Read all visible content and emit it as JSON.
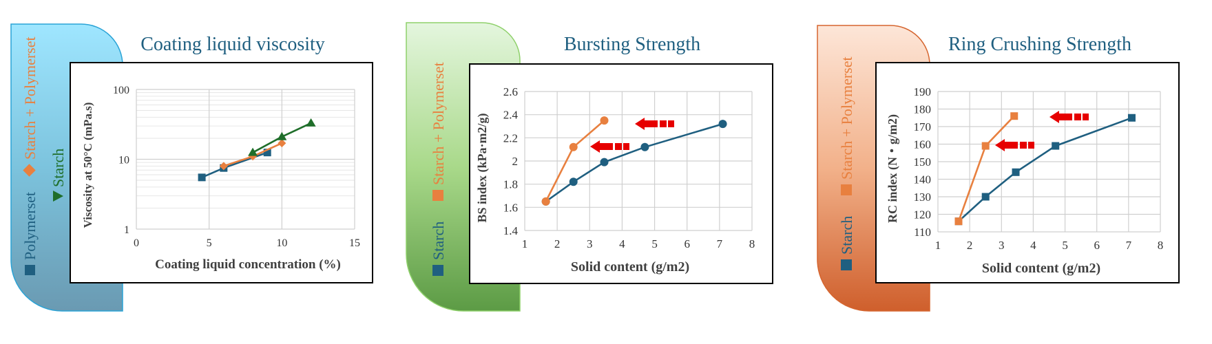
{
  "colors": {
    "polymerset": "#1f5f80",
    "starch_polymerset": "#e8803f",
    "starch_green": "#1f6e2a",
    "title": "#1f5f80",
    "arrow": "#e60000"
  },
  "panel1": {
    "title": "Coating liquid viscosity",
    "legend": {
      "polymerset": "Polymerset",
      "starch_polymerset": "Starch + Polymerset",
      "starch": "Starch"
    }
  },
  "panel2": {
    "title": "Bursting Strength",
    "legend": {
      "starch": "Starch",
      "starch_polymerset": "Starch + Polymerset"
    }
  },
  "panel3": {
    "title": "Ring Crushing Strength",
    "legend": {
      "starch": "Starch",
      "starch_polymerset": "Starch + Polymerset"
    }
  },
  "chart_data": [
    {
      "type": "line",
      "title": "Coating liquid viscosity",
      "xlabel": "Coating liquid concentration (%)",
      "ylabel": "Viscosity at 50°C (mPa.s)",
      "xlim": [
        0,
        15
      ],
      "ylim": [
        1,
        100
      ],
      "yscale": "log",
      "xticks": [
        "0",
        "5",
        "10",
        "15"
      ],
      "yticks": [
        "1",
        "10",
        "100"
      ],
      "grid": true,
      "series": [
        {
          "name": "Polymerset",
          "marker": "square",
          "x": [
            4.5,
            6.0,
            9.0
          ],
          "y": [
            5.5,
            7.5,
            12.5
          ]
        },
        {
          "name": "Starch + Polymerset",
          "marker": "diamond",
          "x": [
            6.0,
            8.0,
            10.0
          ],
          "y": [
            8.0,
            11.0,
            17.0
          ]
        },
        {
          "name": "Starch",
          "marker": "triangle",
          "x": [
            8.0,
            10.0,
            12.0
          ],
          "y": [
            12.5,
            21.0,
            33.0
          ]
        }
      ]
    },
    {
      "type": "line",
      "title": "Bursting Strength",
      "xlabel": "Solid content (g/m2)",
      "ylabel": "BS index (kPa·m2/g)",
      "xlim": [
        1,
        8
      ],
      "ylim": [
        1.4,
        2.6
      ],
      "xticks": [
        "1",
        "2",
        "3",
        "4",
        "5",
        "6",
        "7",
        "8"
      ],
      "yticks": [
        "1.4",
        "1.6",
        "1.8",
        "2",
        "2.2",
        "2.4",
        "2.6"
      ],
      "grid": true,
      "series": [
        {
          "name": "Starch",
          "marker": "circle",
          "x": [
            1.65,
            2.5,
            3.45,
            4.7,
            7.1
          ],
          "y": [
            1.65,
            1.82,
            1.99,
            2.12,
            2.32
          ]
        },
        {
          "name": "Starch + Polymerset",
          "marker": "circle",
          "x": [
            1.65,
            2.5,
            3.45
          ],
          "y": [
            1.65,
            2.12,
            2.35
          ]
        }
      ]
    },
    {
      "type": "line",
      "title": "Ring Crushing Strength",
      "xlabel": "Solid content (g/m2)",
      "ylabel": "RC index (N・g/m2)",
      "xlim": [
        1,
        8
      ],
      "ylim": [
        110,
        190
      ],
      "xticks": [
        "1",
        "2",
        "3",
        "4",
        "5",
        "6",
        "7",
        "8"
      ],
      "yticks": [
        "110",
        "120",
        "130",
        "140",
        "150",
        "160",
        "170",
        "180",
        "190"
      ],
      "grid": true,
      "series": [
        {
          "name": "Starch",
          "marker": "square",
          "x": [
            1.65,
            2.5,
            3.45,
            4.7,
            7.1
          ],
          "y": [
            116,
            130,
            144,
            159,
            175
          ]
        },
        {
          "name": "Starch + Polymerset",
          "marker": "square",
          "x": [
            1.65,
            2.5,
            3.4
          ],
          "y": [
            116,
            159,
            176
          ]
        }
      ]
    }
  ]
}
